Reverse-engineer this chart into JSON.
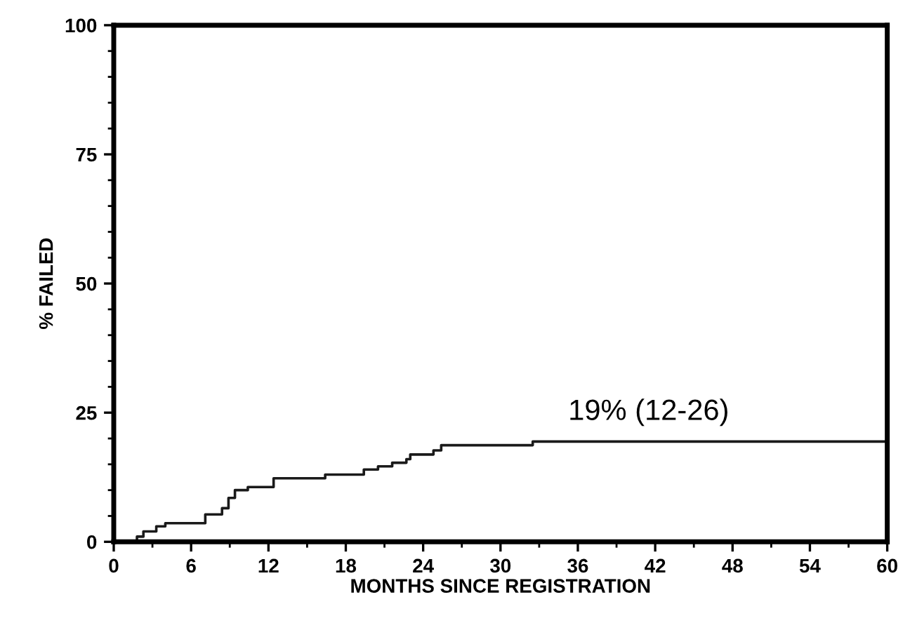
{
  "chart_data": {
    "type": "step",
    "xlabel": "MONTHS SINCE REGISTRATION",
    "ylabel": "% FAILED",
    "x": [
      0,
      1.8,
      2.3,
      3.3,
      4.0,
      7.1,
      8.4,
      8.9,
      9.4,
      10.4,
      12.4,
      16.4,
      19.4,
      20.5,
      21.6,
      22.7,
      23.0,
      24.8,
      25.4,
      32.5,
      60
    ],
    "series": [
      {
        "color": "#1a1a1a",
        "values": [
          0,
          1,
          2,
          3,
          3.6,
          5.3,
          6.5,
          8.5,
          10,
          10.6,
          12.3,
          13,
          14,
          14.6,
          15.3,
          16,
          16.9,
          17.7,
          18.7,
          19.4,
          19.4
        ]
      }
    ],
    "annotations": [
      "19% (12-26)"
    ],
    "xlim": [
      0,
      60
    ],
    "ylim": [
      0,
      100
    ],
    "xticks": [
      0,
      6,
      12,
      18,
      24,
      30,
      36,
      42,
      48,
      54,
      60
    ],
    "yticks": [
      0,
      25,
      50,
      75,
      100
    ],
    "grid": false,
    "line_style": "solid",
    "marker": "none"
  }
}
